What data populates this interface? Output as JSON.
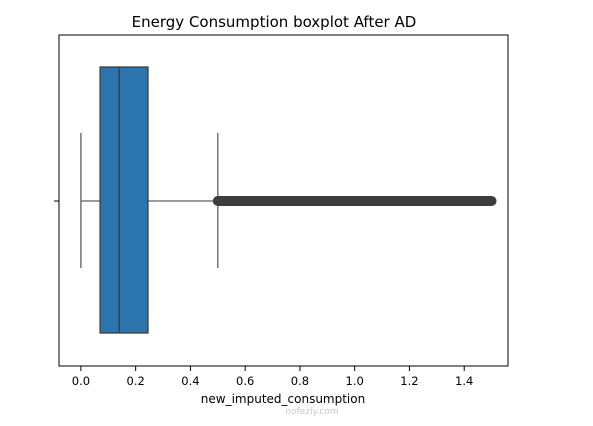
{
  "title": "Energy Consumption boxplot After AD",
  "xlabel": "new_imputed_consumption",
  "watermark": "nofezly.com",
  "colors": {
    "box_fill": "#2b74ae",
    "box_edge": "#3f3f3f",
    "whisker": "#5f5f5f",
    "outlier": "#3d3d3d",
    "frame": "#000000",
    "watermark": "#c8c8c8"
  },
  "chart_data": {
    "type": "box",
    "orientation": "horizontal",
    "title": "Energy Consumption boxplot After AD",
    "xlabel": "new_imputed_consumption",
    "ylabel": "",
    "xlim": [
      -0.08,
      1.56
    ],
    "xticks": [
      0.0,
      0.2,
      0.4,
      0.6,
      0.8,
      1.0,
      1.2,
      1.4
    ],
    "xtick_labels": [
      "0.0",
      "0.2",
      "0.4",
      "0.6",
      "0.8",
      "1.0",
      "1.2",
      "1.4"
    ],
    "yticks": [
      0
    ],
    "ytick_labels": [
      ""
    ],
    "grid": false,
    "box": {
      "whisker_low": 0.0,
      "q1": 0.07,
      "median": 0.14,
      "q3": 0.245,
      "whisker_high": 0.5
    },
    "outliers_range": [
      0.5,
      1.5
    ]
  }
}
